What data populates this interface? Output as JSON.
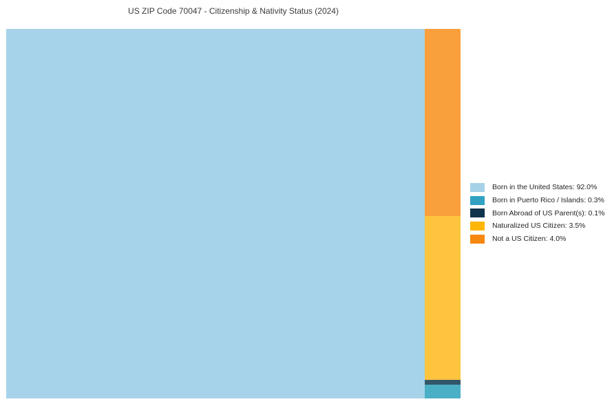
{
  "title": "US ZIP Code 70047 - Citizenship & Nativity Status (2024)",
  "chart_data": {
    "type": "treemap",
    "title": "US ZIP Code 70047 - Citizenship & Nativity Status (2024)",
    "unit": "%",
    "categories": [
      "Born in the United States",
      "Born in Puerto Rico / Islands",
      "Born Abroad of US Parent(s)",
      "Naturalized US Citizen",
      "Not a US Citizen"
    ],
    "values": [
      92.0,
      0.3,
      0.1,
      3.5,
      4.0
    ],
    "chart_colors": [
      "#A6D3E9",
      "#4BAFC5",
      "#33566B",
      "#FEC43E",
      "#F99F3B"
    ],
    "legend_colors": [
      "#A6D2E8",
      "#31A2C2",
      "#0F344B",
      "#FFB60A",
      "#F6870F"
    ],
    "legend_labels": [
      "Born in the United States: 92.0%",
      "Born in Puerto Rico / Islands: 0.3%",
      "Born Abroad of US Parent(s): 0.1%",
      "Naturalized US Citizen: 3.5%",
      "Not a US Citizen: 4.0%"
    ],
    "layout": {
      "left_item_index": 0,
      "right_column_top_to_bottom": [
        4,
        3,
        2,
        1
      ],
      "legend_position": "right",
      "background": "#ffffff"
    }
  }
}
